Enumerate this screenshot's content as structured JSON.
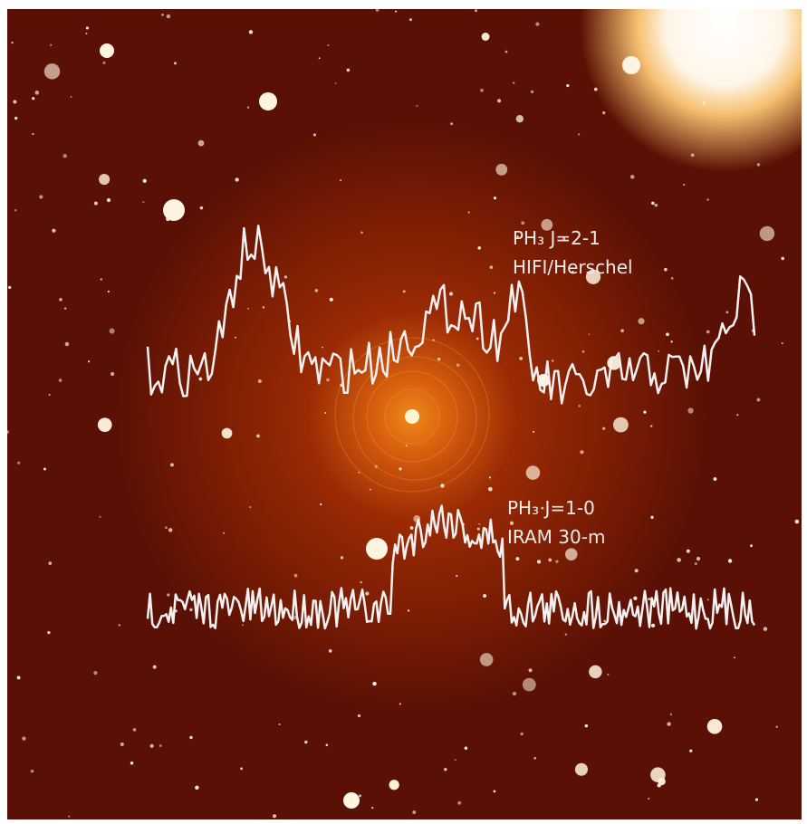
{
  "spectra": [
    {
      "line": "PH₃ J=2-1",
      "instrument": "HIFI/Herschel"
    },
    {
      "line": "PH₃ J=1-0",
      "instrument": "IRAM 30-m"
    }
  ]
}
